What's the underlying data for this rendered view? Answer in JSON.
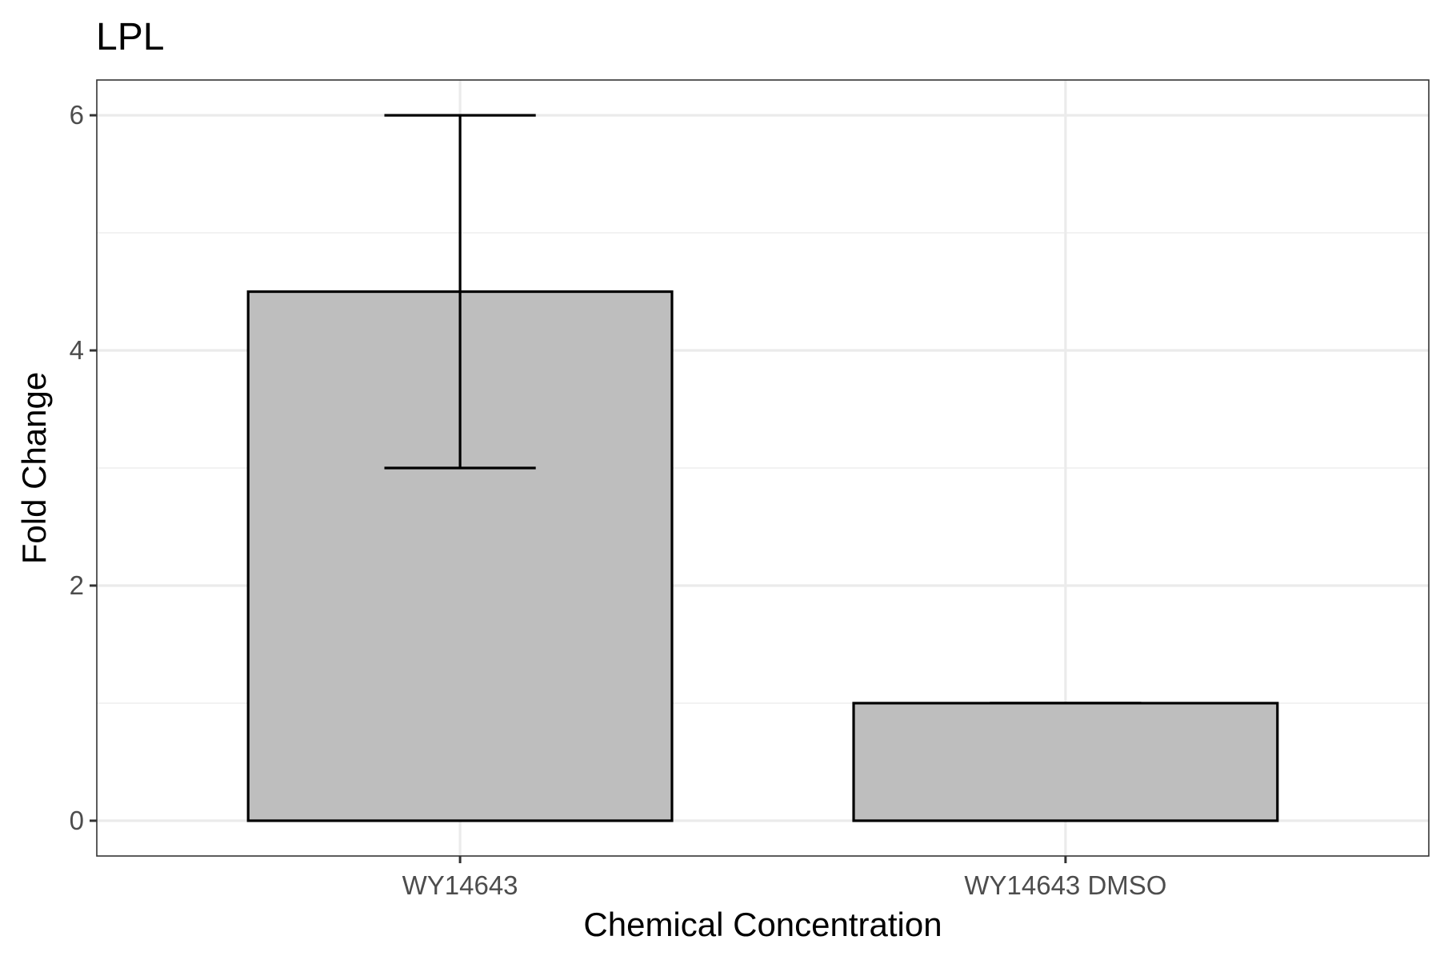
{
  "chart_data": {
    "type": "bar",
    "title": "LPL",
    "xlabel": "Chemical Concentration",
    "ylabel": "Fold Change",
    "categories": [
      "WY14643",
      "WY14643 DMSO"
    ],
    "values": [
      4.5,
      1.0
    ],
    "error_bars": [
      {
        "lower": 3.0,
        "upper": 6.0
      },
      {
        "lower": 1.0,
        "upper": 1.0
      }
    ],
    "ylim": [
      -0.3,
      6.3
    ],
    "yticks": [
      0,
      2,
      4,
      6
    ],
    "ytick_labels": [
      "0",
      "2",
      "4",
      "6"
    ],
    "grid": true,
    "legend": "none",
    "colors": {
      "bar_fill": "#bebebe",
      "bar_stroke": "#000000",
      "grid_major": "#ebebeb",
      "grid_minor": "#f2f2f2",
      "panel_border": "#333333"
    }
  }
}
